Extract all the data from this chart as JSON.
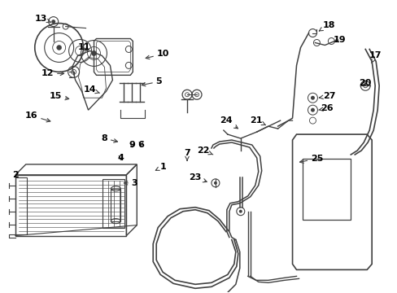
{
  "bg_color": "#ffffff",
  "line_color": "#404040",
  "text_color": "#000000",
  "fig_width": 4.89,
  "fig_height": 3.6,
  "dpi": 100
}
